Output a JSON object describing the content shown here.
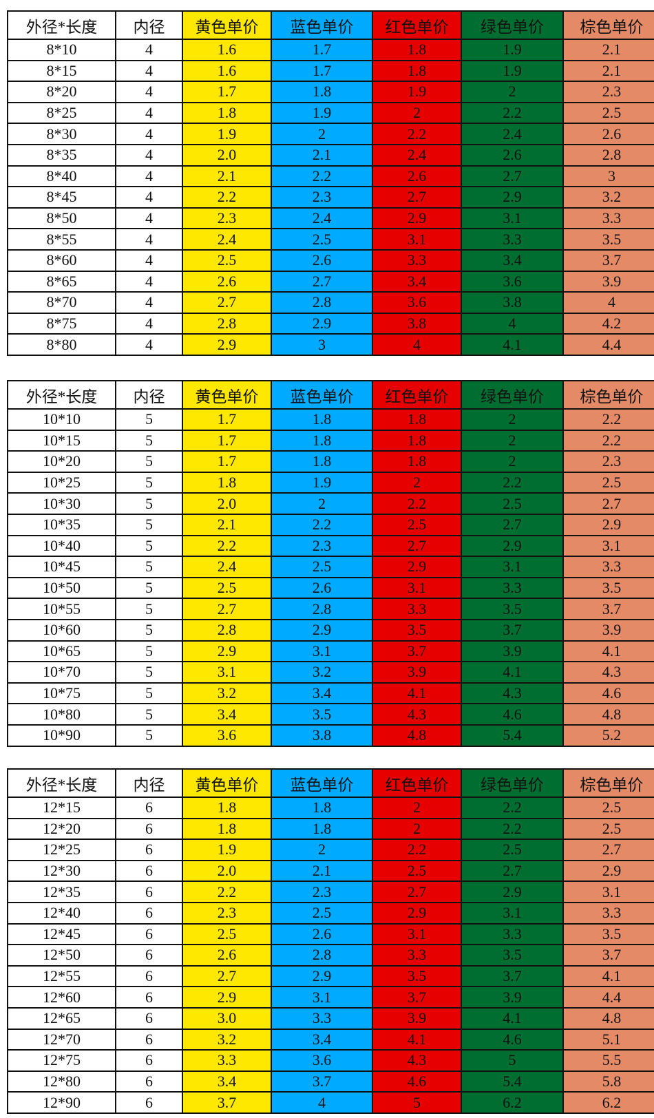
{
  "headers": [
    "外径*长度",
    "内径",
    "黄色单价",
    "蓝色单价",
    "红色单价",
    "绿色单价",
    "棕色单价"
  ],
  "column_colors": [
    "#FFFFFF",
    "#FFFFFF",
    "#FFE800",
    "#00AAFF",
    "#E60000",
    "#006E30",
    "#E48A66"
  ],
  "tables": [
    {
      "rows": [
        [
          "8*10",
          "4",
          "1.6",
          "1.7",
          "1.8",
          "1.9",
          "2.1"
        ],
        [
          "8*15",
          "4",
          "1.6",
          "1.7",
          "1.8",
          "1.9",
          "2.1"
        ],
        [
          "8*20",
          "4",
          "1.7",
          "1.8",
          "1.9",
          "2",
          "2.3"
        ],
        [
          "8*25",
          "4",
          "1.8",
          "1.9",
          "2",
          "2.2",
          "2.5"
        ],
        [
          "8*30",
          "4",
          "1.9",
          "2",
          "2.2",
          "2.4",
          "2.6"
        ],
        [
          "8*35",
          "4",
          "2.0",
          "2.1",
          "2.4",
          "2.6",
          "2.8"
        ],
        [
          "8*40",
          "4",
          "2.1",
          "2.2",
          "2.6",
          "2.7",
          "3"
        ],
        [
          "8*45",
          "4",
          "2.2",
          "2.3",
          "2.7",
          "2.9",
          "3.2"
        ],
        [
          "8*50",
          "4",
          "2.3",
          "2.4",
          "2.9",
          "3.1",
          "3.3"
        ],
        [
          "8*55",
          "4",
          "2.4",
          "2.5",
          "3.1",
          "3.3",
          "3.5"
        ],
        [
          "8*60",
          "4",
          "2.5",
          "2.6",
          "3.3",
          "3.4",
          "3.7"
        ],
        [
          "8*65",
          "4",
          "2.6",
          "2.7",
          "3.4",
          "3.6",
          "3.9"
        ],
        [
          "8*70",
          "4",
          "2.7",
          "2.8",
          "3.6",
          "3.8",
          "4"
        ],
        [
          "8*75",
          "4",
          "2.8",
          "2.9",
          "3.8",
          "4",
          "4.2"
        ],
        [
          "8*80",
          "4",
          "2.9",
          "3",
          "4",
          "4.1",
          "4.4"
        ]
      ]
    },
    {
      "rows": [
        [
          "10*10",
          "5",
          "1.7",
          "1.8",
          "1.8",
          "2",
          "2.2"
        ],
        [
          "10*15",
          "5",
          "1.7",
          "1.8",
          "1.8",
          "2",
          "2.2"
        ],
        [
          "10*20",
          "5",
          "1.7",
          "1.8",
          "1.8",
          "2",
          "2.3"
        ],
        [
          "10*25",
          "5",
          "1.8",
          "1.9",
          "2",
          "2.2",
          "2.5"
        ],
        [
          "10*30",
          "5",
          "2.0",
          "2",
          "2.2",
          "2.5",
          "2.7"
        ],
        [
          "10*35",
          "5",
          "2.1",
          "2.2",
          "2.5",
          "2.7",
          "2.9"
        ],
        [
          "10*40",
          "5",
          "2.2",
          "2.3",
          "2.7",
          "2.9",
          "3.1"
        ],
        [
          "10*45",
          "5",
          "2.4",
          "2.5",
          "2.9",
          "3.1",
          "3.3"
        ],
        [
          "10*50",
          "5",
          "2.5",
          "2.6",
          "3.1",
          "3.3",
          "3.5"
        ],
        [
          "10*55",
          "5",
          "2.7",
          "2.8",
          "3.3",
          "3.5",
          "3.7"
        ],
        [
          "10*60",
          "5",
          "2.8",
          "2.9",
          "3.5",
          "3.7",
          "3.9"
        ],
        [
          "10*65",
          "5",
          "2.9",
          "3.1",
          "3.7",
          "3.9",
          "4.1"
        ],
        [
          "10*70",
          "5",
          "3.1",
          "3.2",
          "3.9",
          "4.1",
          "4.3"
        ],
        [
          "10*75",
          "5",
          "3.2",
          "3.4",
          "4.1",
          "4.3",
          "4.6"
        ],
        [
          "10*80",
          "5",
          "3.4",
          "3.5",
          "4.3",
          "4.6",
          "4.8"
        ],
        [
          "10*90",
          "5",
          "3.6",
          "3.8",
          "4.8",
          "5.4",
          "5.2"
        ]
      ]
    },
    {
      "rows": [
        [
          "12*15",
          "6",
          "1.8",
          "1.8",
          "2",
          "2.2",
          "2.5"
        ],
        [
          "12*20",
          "6",
          "1.8",
          "1.8",
          "2",
          "2.2",
          "2.5"
        ],
        [
          "12*25",
          "6",
          "1.9",
          "2",
          "2.2",
          "2.5",
          "2.7"
        ],
        [
          "12*30",
          "6",
          "2.0",
          "2.1",
          "2.5",
          "2.7",
          "2.9"
        ],
        [
          "12*35",
          "6",
          "2.2",
          "2.3",
          "2.7",
          "2.9",
          "3.1"
        ],
        [
          "12*40",
          "6",
          "2.3",
          "2.5",
          "2.9",
          "3.1",
          "3.3"
        ],
        [
          "12*45",
          "6",
          "2.5",
          "2.6",
          "3.1",
          "3.3",
          "3.5"
        ],
        [
          "12*50",
          "6",
          "2.6",
          "2.8",
          "3.3",
          "3.5",
          "3.7"
        ],
        [
          "12*55",
          "6",
          "2.7",
          "2.9",
          "3.5",
          "3.7",
          "4.1"
        ],
        [
          "12*60",
          "6",
          "2.9",
          "3.1",
          "3.7",
          "3.9",
          "4.4"
        ],
        [
          "12*65",
          "6",
          "3.0",
          "3.3",
          "3.9",
          "4.1",
          "4.8"
        ],
        [
          "12*70",
          "6",
          "3.2",
          "3.4",
          "4.1",
          "4.6",
          "5.1"
        ],
        [
          "12*75",
          "6",
          "3.3",
          "3.6",
          "4.3",
          "5",
          "5.5"
        ],
        [
          "12*80",
          "6",
          "3.4",
          "3.7",
          "4.6",
          "5.4",
          "5.8"
        ],
        [
          "12*90",
          "6",
          "3.7",
          "4",
          "5",
          "6.2",
          "6.2"
        ]
      ]
    }
  ]
}
